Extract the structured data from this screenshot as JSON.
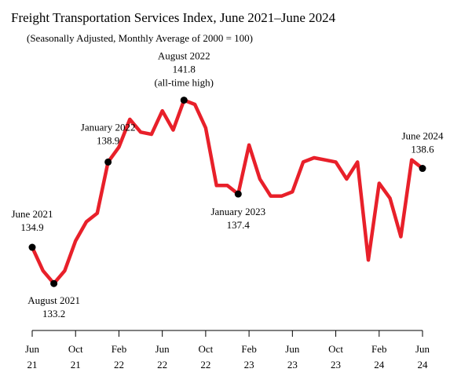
{
  "chart_data": {
    "type": "line",
    "title": "Freight Transportation Services Index, June 2021–June 2024",
    "subtitle": "(Seasonally Adjusted, Monthly Average of 2000 = 100)",
    "ylim": [
      131.0,
      143.0
    ],
    "series_color": "#e8202a",
    "x_ticks": [
      {
        "month": "Jun",
        "year": "21"
      },
      {
        "month": "Oct",
        "year": "21"
      },
      {
        "month": "Feb",
        "year": "22"
      },
      {
        "month": "Jun",
        "year": "22"
      },
      {
        "month": "Oct",
        "year": "22"
      },
      {
        "month": "Feb",
        "year": "23"
      },
      {
        "month": "Jun",
        "year": "23"
      },
      {
        "month": "Oct",
        "year": "23"
      },
      {
        "month": "Feb",
        "year": "24"
      },
      {
        "month": "Jun",
        "year": "24"
      }
    ],
    "x": [
      "2021-06",
      "2021-07",
      "2021-08",
      "2021-09",
      "2021-10",
      "2021-11",
      "2021-12",
      "2022-01",
      "2022-02",
      "2022-03",
      "2022-04",
      "2022-05",
      "2022-06",
      "2022-07",
      "2022-08",
      "2022-09",
      "2022-10",
      "2022-11",
      "2022-12",
      "2023-01",
      "2023-02",
      "2023-03",
      "2023-04",
      "2023-05",
      "2023-06",
      "2023-07",
      "2023-08",
      "2023-09",
      "2023-10",
      "2023-11",
      "2023-12",
      "2024-01",
      "2024-02",
      "2024-03",
      "2024-04",
      "2024-05",
      "2024-06"
    ],
    "values": [
      134.9,
      133.8,
      133.2,
      133.8,
      135.2,
      136.1,
      136.5,
      138.9,
      139.6,
      140.9,
      140.3,
      140.2,
      141.3,
      140.4,
      141.8,
      141.6,
      140.5,
      137.8,
      137.8,
      137.4,
      139.7,
      138.1,
      137.3,
      137.3,
      137.5,
      138.9,
      139.1,
      139.0,
      138.9,
      138.1,
      138.9,
      134.3,
      137.9,
      137.2,
      135.4,
      139.0,
      138.6
    ],
    "annotations": [
      {
        "index": 0,
        "lines": [
          "June 2021",
          "134.9"
        ]
      },
      {
        "index": 2,
        "lines": [
          "August 2021",
          "133.2"
        ]
      },
      {
        "index": 7,
        "lines": [
          "January 2022",
          "138.9"
        ]
      },
      {
        "index": 14,
        "lines": [
          "August 2022",
          "141.8",
          "(all-time high)"
        ]
      },
      {
        "index": 19,
        "lines": [
          "January 2023",
          "137.4"
        ]
      },
      {
        "index": 36,
        "lines": [
          "June 2024",
          "138.6"
        ]
      }
    ]
  }
}
